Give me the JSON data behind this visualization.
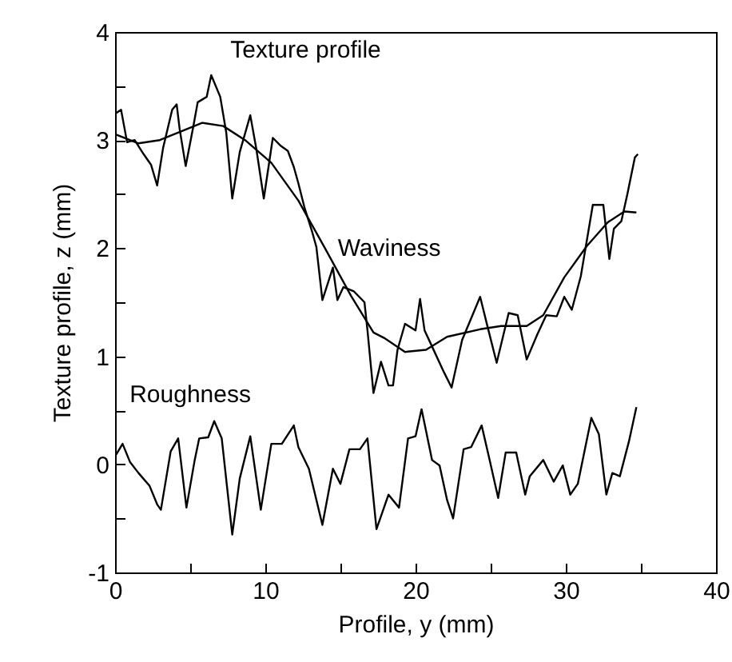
{
  "chart_data": {
    "type": "line",
    "xlabel": "Profile, y (mm)",
    "ylabel": "Texture profile, z (mm)",
    "xlim": [
      0,
      40
    ],
    "ylim": [
      -1,
      4
    ],
    "xticks": [
      0,
      {
        "value": 5,
        "label": null
      },
      10,
      {
        "value": 15,
        "label": null
      },
      20,
      {
        "value": 25,
        "label": null
      },
      30,
      {
        "value": 35,
        "label": null
      },
      40
    ],
    "yticks": [
      -1,
      {
        "value": -0.5,
        "label": null
      },
      0,
      {
        "value": 0.5,
        "label": null
      },
      1,
      {
        "value": 1.5,
        "label": null
      },
      2,
      {
        "value": 2.5,
        "label": null
      },
      3,
      {
        "value": 3.5,
        "label": null
      },
      4
    ],
    "grid": false,
    "legend": false,
    "marker": "none",
    "line_style": "solid",
    "series": [
      {
        "name": "Texture profile",
        "color": "#000000",
        "x": [
          0.07,
          0.4,
          0.8,
          1.3,
          1.9,
          2.4,
          2.8,
          3.2,
          3.8,
          4.1,
          4.3,
          4.7,
          5.2,
          5.5,
          6.1,
          6.4,
          7.0,
          7.4,
          7.8,
          8.3,
          9.0,
          9.4,
          9.9,
          10.5,
          11.0,
          11.5,
          11.9,
          12.2,
          12.6,
          13.1,
          13.4,
          13.8,
          14.5,
          14.8,
          15.2,
          15.9,
          16.6,
          16.8,
          17.2,
          17.7,
          18.2,
          18.5,
          18.8,
          19.3,
          20.0,
          20.3,
          20.6,
          21.0,
          21.9,
          22.4,
          23.1,
          24.3,
          24.8,
          25.4,
          26.2,
          26.8,
          27.4,
          28.1,
          28.7,
          29.4,
          29.9,
          30.4,
          31.0,
          31.8,
          32.5,
          32.9,
          33.2,
          33.7,
          34.1,
          34.6,
          34.8
        ],
        "values": [
          3.25,
          3.28,
          2.98,
          3.0,
          2.87,
          2.77,
          2.58,
          2.93,
          3.28,
          3.33,
          3.1,
          2.76,
          3.12,
          3.35,
          3.4,
          3.6,
          3.4,
          3.07,
          2.46,
          2.89,
          3.23,
          2.92,
          2.46,
          3.02,
          2.95,
          2.9,
          2.75,
          2.6,
          2.38,
          2.16,
          2.01,
          1.52,
          1.82,
          1.52,
          1.64,
          1.6,
          1.5,
          1.24,
          0.66,
          0.95,
          0.73,
          0.73,
          1.06,
          1.3,
          1.24,
          1.53,
          1.24,
          1.12,
          0.85,
          0.71,
          1.15,
          1.55,
          1.27,
          0.94,
          1.4,
          1.38,
          0.97,
          1.2,
          1.38,
          1.37,
          1.55,
          1.43,
          1.74,
          2.4,
          2.4,
          1.9,
          2.18,
          2.25,
          2.5,
          2.84,
          2.87
        ]
      },
      {
        "name": "Waviness",
        "color": "#000000",
        "x": [
          0.07,
          1.56,
          2.98,
          5.8,
          7.2,
          8.65,
          10.4,
          12.2,
          13.97,
          15.7,
          17.2,
          17.9,
          19.3,
          20.7,
          22.1,
          24.3,
          25.7,
          27.4,
          28.5,
          29.9,
          31.4,
          32.8,
          33.9,
          34.7
        ],
        "values": [
          3.05,
          2.97,
          3.0,
          3.16,
          3.13,
          3.0,
          2.79,
          2.44,
          2.0,
          1.56,
          1.22,
          1.17,
          1.04,
          1.06,
          1.18,
          1.25,
          1.28,
          1.28,
          1.38,
          1.73,
          2.02,
          2.24,
          2.34,
          2.33
        ]
      },
      {
        "name": "Roughness",
        "color": "#000000",
        "x": [
          0.07,
          0.5,
          1.0,
          1.56,
          2.3,
          2.8,
          3.05,
          3.7,
          4.2,
          4.75,
          5.3,
          5.6,
          6.2,
          6.6,
          7.1,
          7.8,
          8.3,
          9.0,
          9.7,
          10.4,
          11.1,
          11.9,
          12.2,
          12.9,
          13.8,
          14.5,
          15.0,
          15.6,
          16.3,
          16.8,
          17.4,
          18.2,
          18.9,
          19.5,
          20.0,
          20.4,
          21.1,
          21.6,
          22.1,
          22.5,
          23.2,
          23.7,
          24.4,
          24.9,
          25.5,
          26.0,
          26.7,
          27.3,
          27.6,
          28.5,
          29.2,
          29.8,
          30.3,
          30.8,
          31.7,
          32.2,
          32.7,
          33.1,
          33.6,
          34.2,
          34.7
        ],
        "values": [
          0.09,
          0.19,
          0.02,
          -0.08,
          -0.2,
          -0.37,
          -0.42,
          0.12,
          0.24,
          -0.4,
          0.04,
          0.24,
          0.25,
          0.4,
          0.24,
          -0.65,
          -0.13,
          0.26,
          -0.42,
          0.19,
          0.19,
          0.36,
          0.16,
          -0.04,
          -0.56,
          -0.04,
          -0.18,
          0.14,
          0.14,
          0.24,
          -0.6,
          -0.28,
          -0.4,
          0.24,
          0.26,
          0.51,
          0.04,
          -0.01,
          -0.33,
          -0.5,
          0.14,
          0.16,
          0.36,
          0.06,
          -0.31,
          0.11,
          0.11,
          -0.28,
          -0.11,
          0.04,
          -0.16,
          -0.01,
          -0.28,
          -0.18,
          0.43,
          0.28,
          -0.28,
          -0.08,
          -0.11,
          0.21,
          0.53
        ]
      }
    ]
  }
}
